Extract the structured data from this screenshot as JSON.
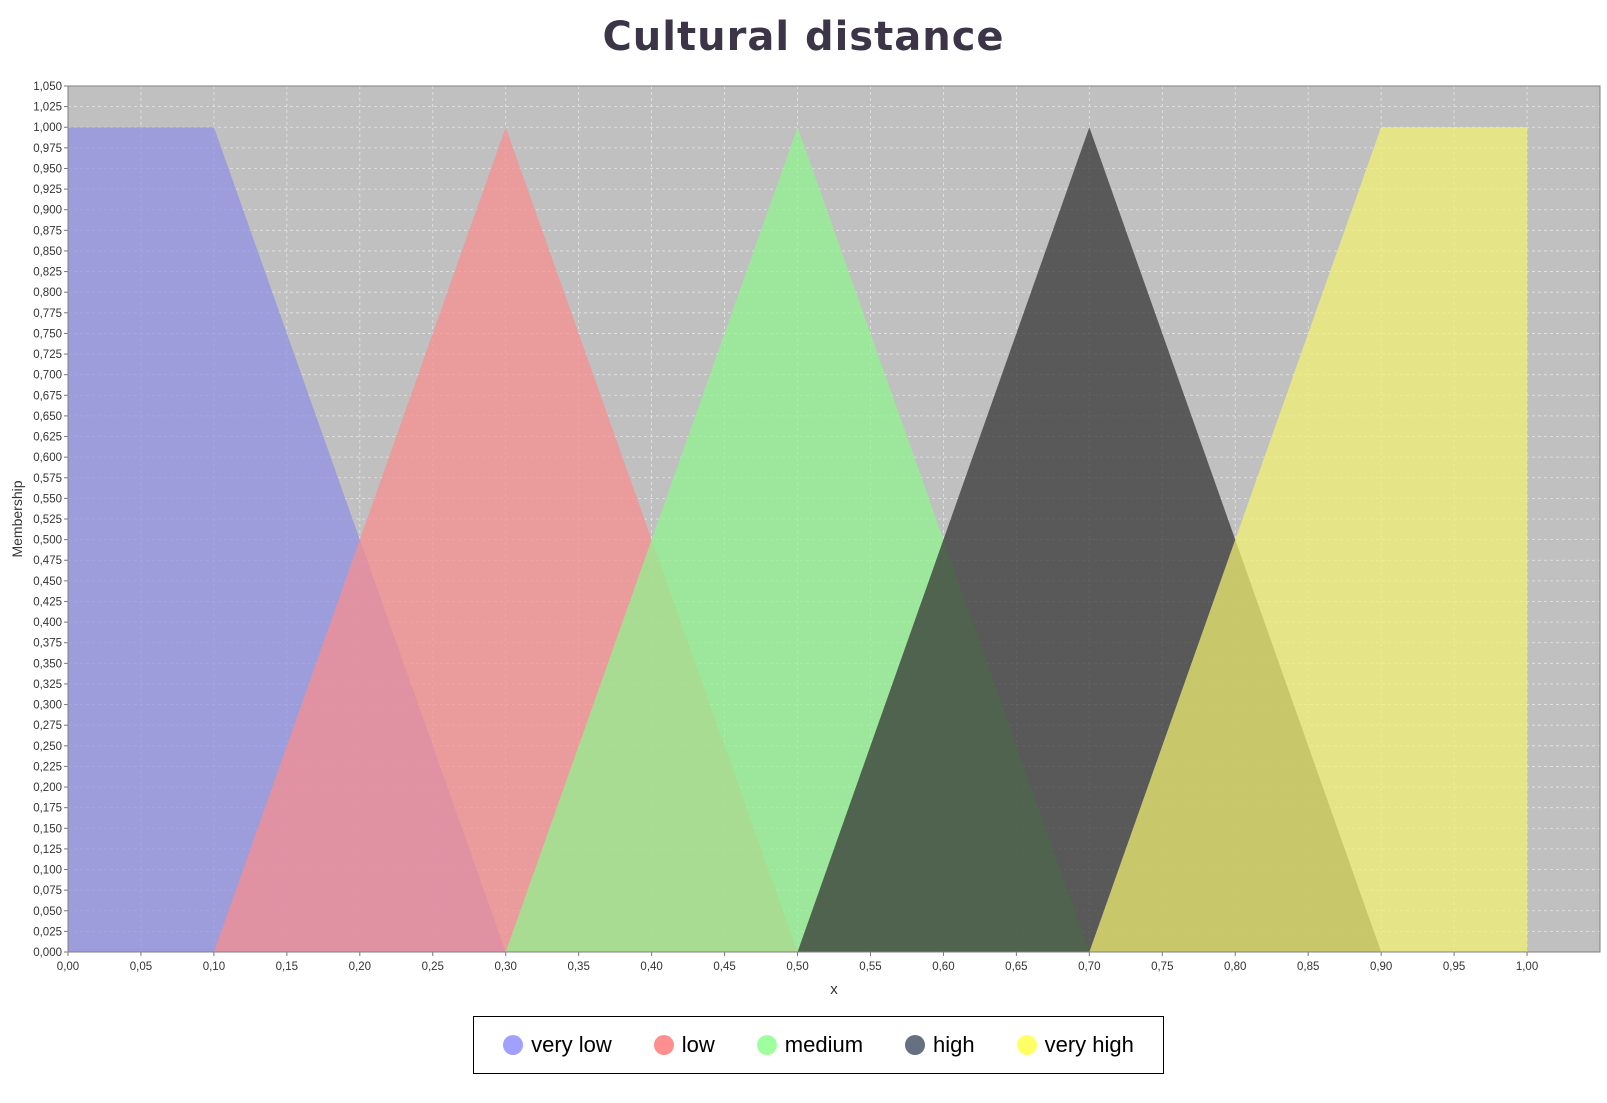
{
  "chart_data": {
    "type": "area",
    "title": "Cultural distance",
    "xlabel": "x",
    "ylabel": "Membership",
    "xlim": [
      0,
      1.05
    ],
    "ylim": [
      0,
      1.05
    ],
    "x_ticks": [
      "0,00",
      "0,05",
      "0,10",
      "0,15",
      "0,20",
      "0,25",
      "0,30",
      "0,35",
      "0,40",
      "0,45",
      "0,50",
      "0,55",
      "0,60",
      "0,65",
      "0,70",
      "0,75",
      "0,80",
      "0,85",
      "0,90",
      "0,95",
      "1,00"
    ],
    "y_ticks": [
      "0,000",
      "0,025",
      "0,050",
      "0,075",
      "0,100",
      "0,125",
      "0,150",
      "0,175",
      "0,200",
      "0,225",
      "0,250",
      "0,275",
      "0,300",
      "0,325",
      "0,350",
      "0,375",
      "0,400",
      "0,425",
      "0,450",
      "0,475",
      "0,500",
      "0,525",
      "0,550",
      "0,575",
      "0,600",
      "0,625",
      "0,650",
      "0,675",
      "0,700",
      "0,725",
      "0,750",
      "0,775",
      "0,800",
      "0,825",
      "0,850",
      "0,875",
      "0,900",
      "0,925",
      "0,950",
      "0,975",
      "1,000",
      "1,025",
      "1,050"
    ],
    "grid": true,
    "legend_position": "bottom",
    "series": [
      {
        "name": "very low",
        "color": "#8f8fe6",
        "swatch": "#a0a0ff",
        "points": [
          [
            0,
            0
          ],
          [
            0,
            1
          ],
          [
            0.1,
            1
          ],
          [
            0.3,
            0
          ]
        ]
      },
      {
        "name": "low",
        "color": "#fa8c8c",
        "swatch": "#ff8f8f",
        "points": [
          [
            0.1,
            0
          ],
          [
            0.3,
            1
          ],
          [
            0.5,
            0
          ]
        ]
      },
      {
        "name": "medium",
        "color": "#8ff58f",
        "swatch": "#9fff9f",
        "points": [
          [
            0.3,
            0
          ],
          [
            0.5,
            1
          ],
          [
            0.7,
            0
          ]
        ]
      },
      {
        "name": "high",
        "color": "#303030",
        "swatch": "#667080",
        "points": [
          [
            0.5,
            0
          ],
          [
            0.7,
            1
          ],
          [
            0.9,
            0
          ]
        ]
      },
      {
        "name": "very high",
        "color": "#f2f270",
        "swatch": "#ffff66",
        "points": [
          [
            0.7,
            0
          ],
          [
            0.9,
            1
          ],
          [
            1.0,
            1
          ],
          [
            1.0,
            0
          ]
        ]
      }
    ],
    "plot_background": "#c0c0c0"
  }
}
